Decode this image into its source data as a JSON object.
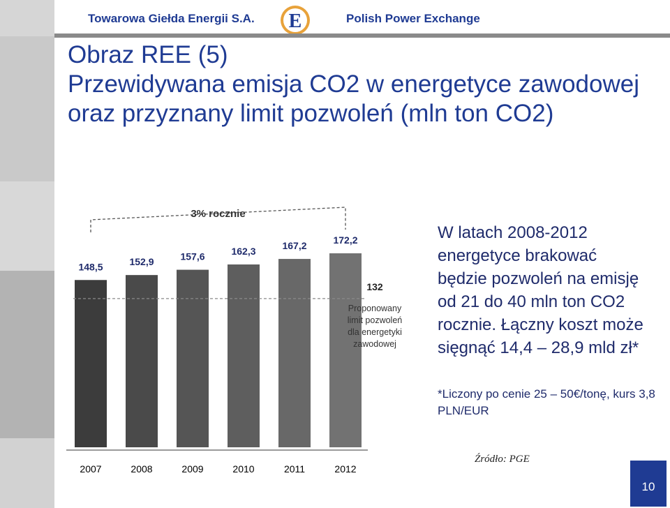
{
  "header": {
    "brand_left": "Towarowa Giełda Energii S.A.",
    "brand_right": "Polish Power Exchange"
  },
  "title": {
    "line1": "Obraz REE (5)",
    "line2": "Przewidywana emisja CO2 w energetyce zawodowej oraz przyznany limit pozwoleń (mln ton CO2)"
  },
  "chart_data": {
    "type": "bar",
    "categories": [
      "2007",
      "2008",
      "2009",
      "2010",
      "2011",
      "2012"
    ],
    "values": [
      148.5,
      152.9,
      157.6,
      162.3,
      167.2,
      172.2
    ],
    "value_labels": [
      "148,5",
      "152,9",
      "157,6",
      "162,3",
      "167,2",
      "172,2"
    ],
    "growth_annotation": "3% rocznie",
    "limit": {
      "value": 132,
      "value_label": "132",
      "label_lines": [
        "Proponowany",
        "limit pozwoleń",
        "dla energetyki",
        "zawodowej"
      ]
    },
    "bar_colors": [
      "#3c3c3c",
      "#4a4a4a",
      "#555555",
      "#5e5e5e",
      "#686868",
      "#727272"
    ],
    "legend": "none",
    "grid": false
  },
  "side_text": "W latach 2008-2012 energetyce brakować będzie pozwoleń na emisję od 21 do 40 mln ton CO2 rocznie. Łączny koszt może sięgnąć 14,4 – 28,9 mld zł*",
  "note_text": "*Liczony po cenie 25 – 50€/tonę, kurs 3,8 PLN/EUR",
  "source": "Źródło: PGE",
  "page_number": "10",
  "colors": {
    "brand_blue": "#1f3b93",
    "strip_light": "#cfcfcf",
    "strip_dark": "#b5b5b5"
  }
}
